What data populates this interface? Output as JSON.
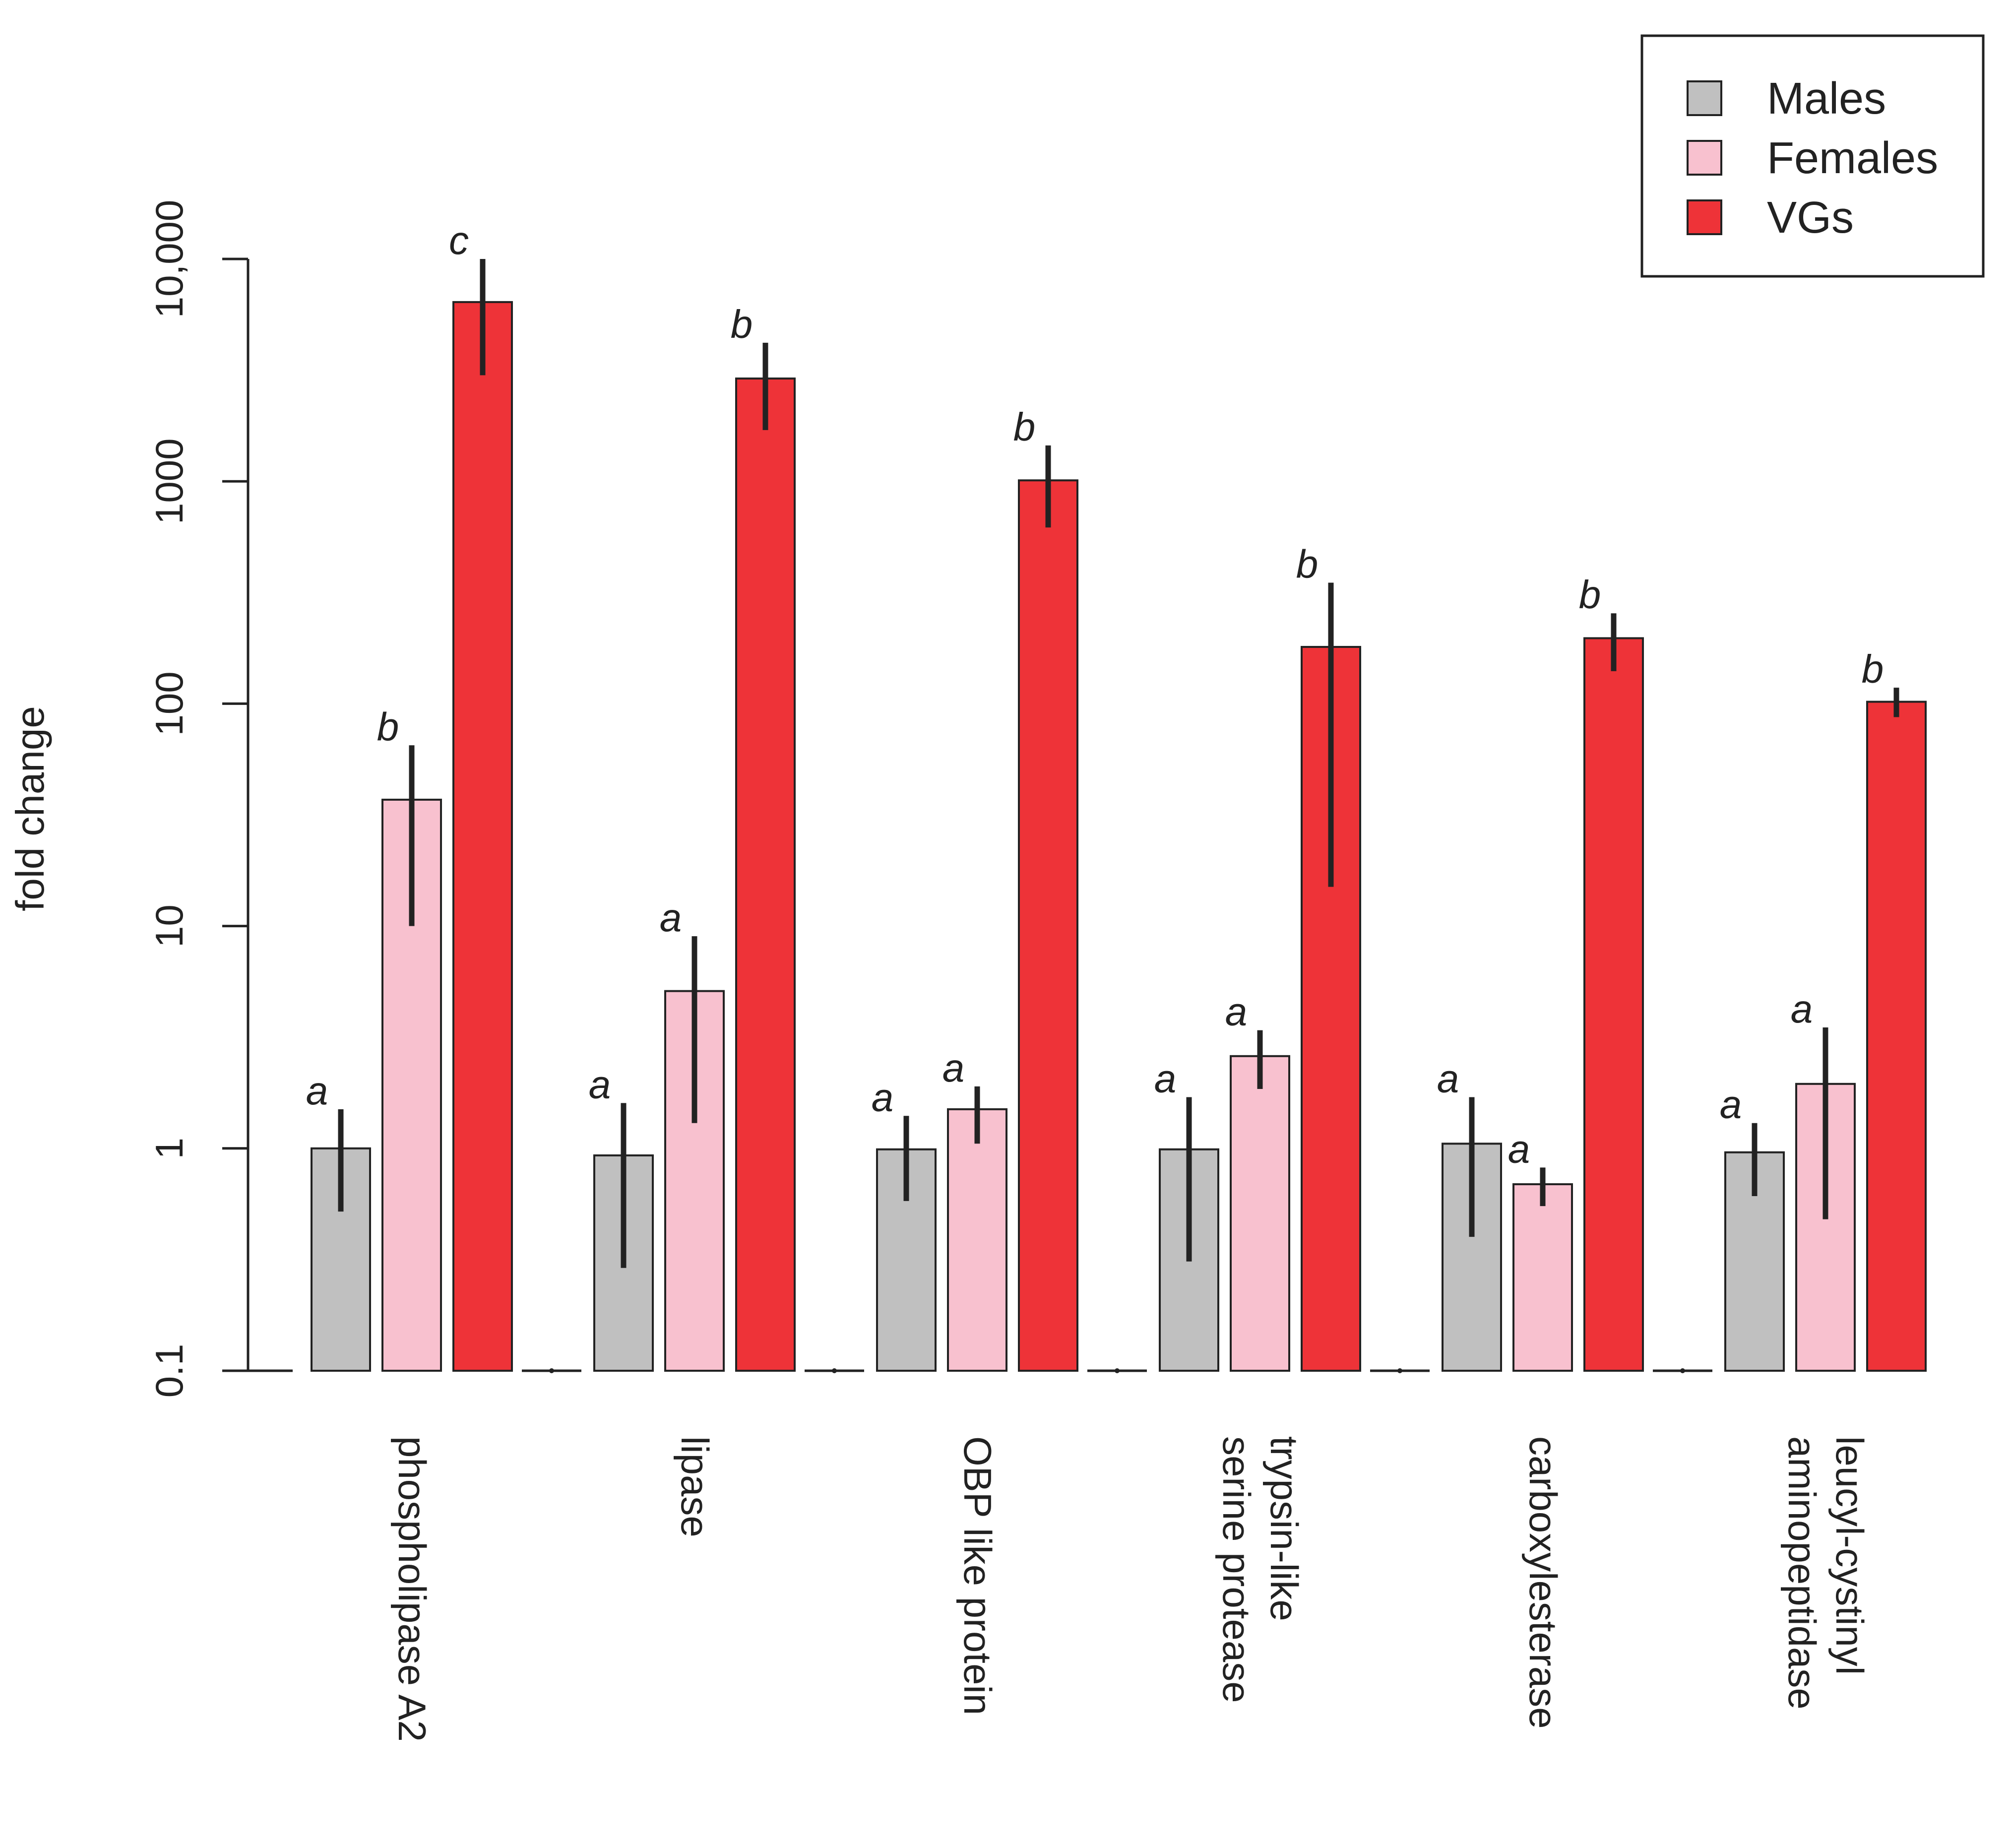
{
  "chart_data": {
    "type": "bar",
    "title": "",
    "xlabel": "",
    "ylabel": "fold change",
    "yscale": "log",
    "ylim": [
      0.1,
      10000
    ],
    "yticks": [
      {
        "value": 0.1,
        "label": "0.1"
      },
      {
        "value": 1,
        "label": "1"
      },
      {
        "value": 10,
        "label": "10"
      },
      {
        "value": 100,
        "label": "100"
      },
      {
        "value": 1000,
        "label": "1000"
      },
      {
        "value": 10000,
        "label": "10,000"
      }
    ],
    "categories": [
      {
        "label_lines": [
          "phospholipase A2"
        ]
      },
      {
        "label_lines": [
          "lipase"
        ]
      },
      {
        "label_lines": [
          "OBP like protein"
        ]
      },
      {
        "label_lines": [
          "trypsin-like",
          "serine protease"
        ]
      },
      {
        "label_lines": [
          "carboxylesterase"
        ]
      },
      {
        "label_lines": [
          "leucyl-cystinyl",
          "aminopeptidase"
        ]
      }
    ],
    "series": [
      {
        "name": "Males",
        "color": "#c0c0c0",
        "values": [
          1.0,
          0.93,
          0.99,
          0.99,
          1.05,
          0.96
        ],
        "err_low": [
          0.52,
          0.29,
          0.58,
          0.31,
          0.4,
          0.61
        ],
        "err_high": [
          1.5,
          1.6,
          1.4,
          1.7,
          1.7,
          1.3
        ],
        "sig": [
          "a",
          "a",
          "a",
          "a",
          "a",
          "a"
        ]
      },
      {
        "name": "Females",
        "color": "#f8c1cf",
        "values": [
          37,
          5.1,
          1.5,
          2.6,
          0.69,
          1.95
        ],
        "err_low": [
          10,
          1.3,
          1.05,
          1.85,
          0.55,
          0.48
        ],
        "err_high": [
          65,
          9,
          1.9,
          3.4,
          0.82,
          3.5
        ],
        "sig": [
          "b",
          "a",
          "a",
          "a",
          "a",
          "a"
        ]
      },
      {
        "name": "VGs",
        "color": "#ee3338",
        "values": [
          6400,
          2900,
          1010,
          180,
          197,
          102
        ],
        "err_low": [
          3000,
          1700,
          620,
          15,
          140,
          87
        ],
        "err_high": [
          10000,
          4200,
          1450,
          350,
          255,
          118
        ],
        "sig": [
          "c",
          "b",
          "b",
          "b",
          "b",
          "b"
        ]
      }
    ],
    "legend": {
      "position": "top-right",
      "entries": [
        "Males",
        "Females",
        "VGs"
      ]
    }
  }
}
